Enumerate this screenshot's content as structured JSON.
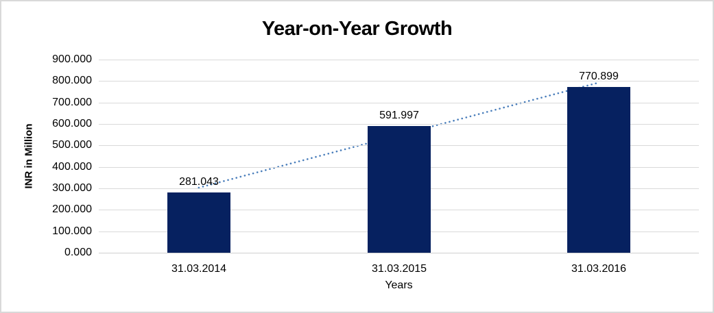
{
  "frame": {
    "background": "#FFFFFF",
    "border_color": "#D9D9D9"
  },
  "chart_data": {
    "type": "bar",
    "title": "Year-on-Year Growth",
    "xlabel": "Years",
    "ylabel": "INR in Million",
    "categories": [
      "31.03.2014",
      "31.03.2015",
      "31.03.2016"
    ],
    "values": [
      281.043,
      591.997,
      770.899
    ],
    "data_labels": [
      "281.043",
      "591.997",
      "770.899"
    ],
    "ylim": [
      0,
      900
    ],
    "ytick_step": 100,
    "ytick_labels": [
      "0.000",
      "100.000",
      "200.000",
      "300.000",
      "400.000",
      "500.000",
      "600.000",
      "700.000",
      "800.000",
      "900.000"
    ],
    "grid": "horizontal-only",
    "legend": "none",
    "bar_color": "#062160",
    "gridline_color": "#D9D9D9",
    "text_color": "#000000",
    "trendline": {
      "type": "linear",
      "style": "dotted",
      "color": "#4A7EBB"
    }
  }
}
